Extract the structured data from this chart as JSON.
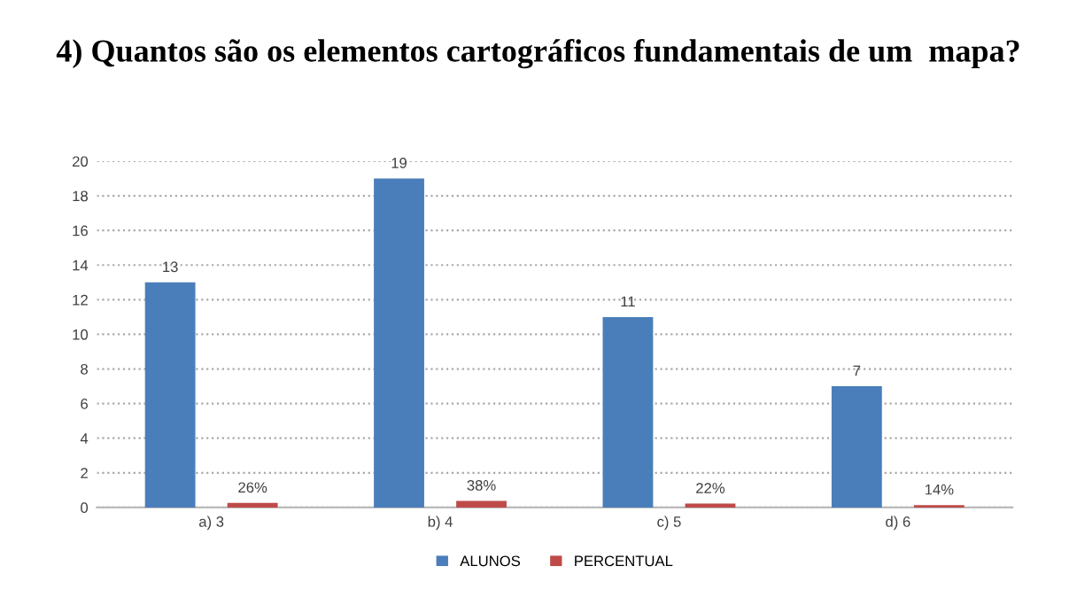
{
  "chart_data": {
    "type": "bar",
    "title": "4) Quantos são os elementos cartográficos fundamentais de um  mapa?",
    "categories": [
      "a) 3",
      "b) 4",
      "c) 5",
      "d) 6"
    ],
    "series": [
      {
        "name": "ALUNOS",
        "color": "#4a7ebb",
        "values": [
          13,
          19,
          11,
          7
        ],
        "value_labels": [
          "13",
          "19",
          "11",
          "7"
        ]
      },
      {
        "name": "PERCENTUAL",
        "color": "#be4b48",
        "values": [
          0.26,
          0.38,
          0.22,
          0.14
        ],
        "value_labels": [
          "26%",
          "38%",
          "22%",
          "14%"
        ]
      }
    ],
    "ylim": [
      0,
      20
    ],
    "yticks": [
      0,
      2,
      4,
      6,
      8,
      10,
      12,
      14,
      16,
      18,
      20
    ],
    "grid": "y",
    "legend": "bottom"
  }
}
